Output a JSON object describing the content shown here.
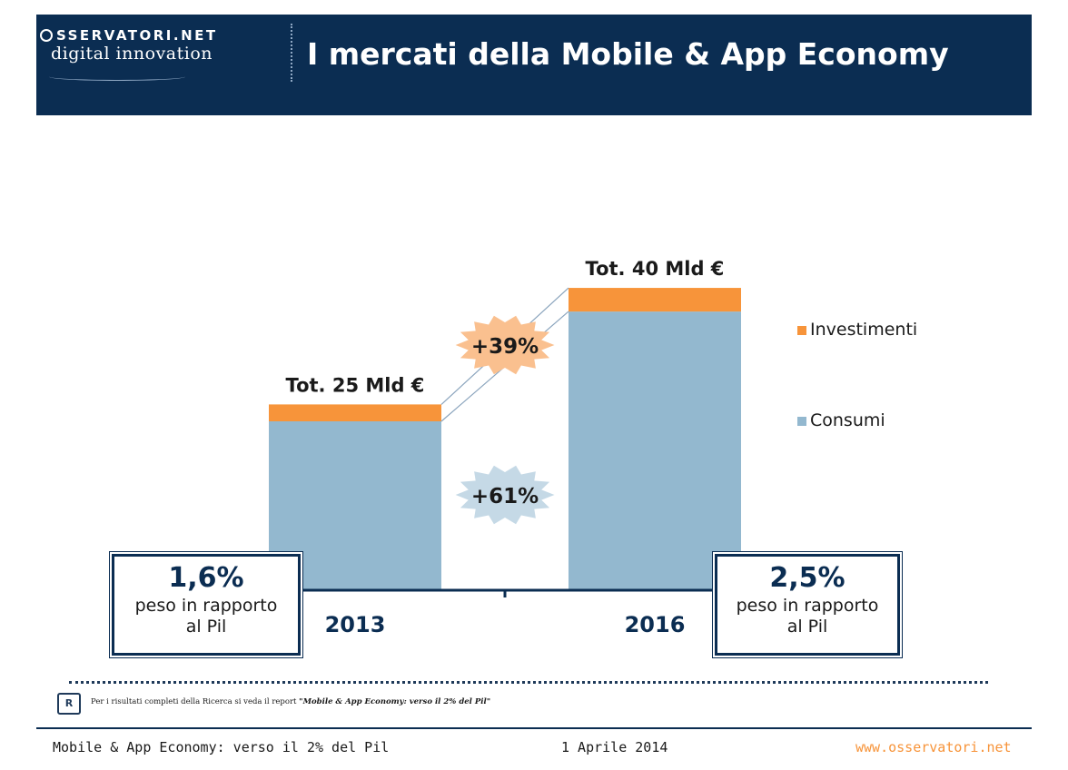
{
  "header": {
    "logo_top": "SSERVATORI.NET",
    "logo_bottom": "digital innovation",
    "title": "I mercati della Mobile & App Economy"
  },
  "chart_data": {
    "type": "bar",
    "stacked": true,
    "categories": [
      "2013",
      "2016"
    ],
    "series": [
      {
        "name": "Consumi",
        "color": "#93b8cf",
        "values": [
          20,
          33
        ]
      },
      {
        "name": "Investimenti",
        "color": "#f7943a",
        "values": [
          2.0,
          2.8
        ]
      }
    ],
    "totals": [
      "Tot. 25 Mld €",
      "Tot. 40 Mld €"
    ],
    "growth": {
      "investimenti": "+39%",
      "consumi": "+61%"
    },
    "legend_position": "right",
    "gdp_share": [
      {
        "value": "1,6%",
        "label": "peso in rapporto al Pil"
      },
      {
        "value": "2,5%",
        "label": "peso in rapporto al Pil"
      }
    ]
  },
  "note": {
    "text": "Per i risultati completi della Ricerca si veda il report ",
    "report": "\"Mobile & App Economy: verso il 2% del Pil\""
  },
  "footer": {
    "left": "Mobile & App Economy: verso il 2% del Pil",
    "middle": "1 Aprile 2014",
    "right": "www.osservatori.net"
  }
}
